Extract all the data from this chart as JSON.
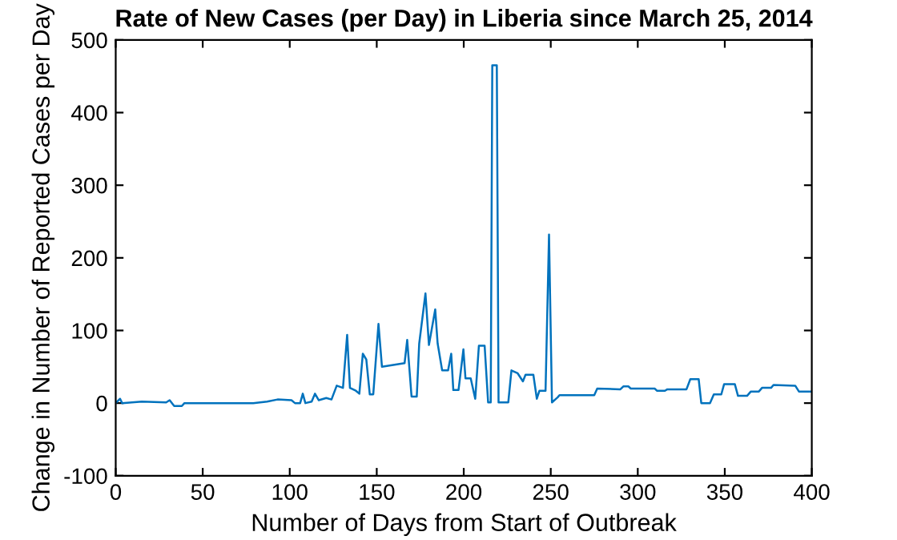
{
  "chart_data": {
    "type": "line",
    "title": "Rate of New Cases (per Day) in Liberia since March 25, 2014",
    "xlabel": "Number of Days from Start of Outbreak",
    "ylabel": "Change in Number of Reported Cases per Day",
    "xlim": [
      0,
      400
    ],
    "ylim": [
      -100,
      500
    ],
    "xticks": [
      0,
      50,
      100,
      150,
      200,
      250,
      300,
      350,
      400
    ],
    "yticks": [
      -100,
      0,
      100,
      200,
      300,
      400,
      500
    ],
    "grid": false,
    "legend": false,
    "marker": "none",
    "line_style": "solid",
    "series": [
      {
        "color": "#0072bd",
        "x": [
          0,
          2.5,
          3.7,
          15,
          29,
          31,
          33.6,
          38,
          39.5,
          79,
          87,
          93,
          101,
          103,
          106,
          107.5,
          109,
          112.6,
          114.5,
          116.7,
          121,
          124,
          127,
          130.6,
          133,
          134.6,
          138,
          140,
          142,
          144,
          146,
          148,
          151,
          153,
          166,
          167.5,
          170,
          173,
          174.4,
          178,
          180,
          183.6,
          185,
          187.6,
          191,
          192.8,
          194,
          197,
          199.8,
          201,
          204,
          206.6,
          208.7,
          212,
          214,
          215.5,
          216.4,
          219,
          220,
          225.6,
          227.4,
          231,
          234,
          235.5,
          240,
          242,
          243.5,
          247,
          249,
          250.7,
          254,
          255,
          275,
          276.7,
          290,
          291.7,
          294.6,
          296,
          309.8,
          311,
          315.6,
          317,
          328,
          330.2,
          335,
          336.5,
          341.5,
          343.7,
          348,
          349.6,
          355.8,
          357.6,
          362.8,
          365,
          369.6,
          371.4,
          376.6,
          378,
          390.5,
          392.6,
          400
        ],
        "values": [
          0,
          6,
          0,
          2,
          1,
          4,
          -4,
          -4,
          0,
          0,
          2,
          5,
          4,
          0,
          0,
          13,
          0,
          2,
          13,
          4,
          7,
          5,
          24,
          21,
          94,
          21,
          17,
          13,
          68,
          60,
          12,
          12,
          109,
          50,
          55,
          87,
          9,
          9,
          82,
          151,
          80,
          129,
          82,
          45,
          45,
          68,
          18,
          18,
          74,
          34,
          34,
          6,
          79,
          79,
          1,
          1,
          465,
          465,
          1,
          1,
          45,
          41,
          30,
          39,
          39,
          6,
          17,
          17,
          232,
          1,
          8,
          11,
          11,
          20,
          19,
          23,
          23,
          20,
          20,
          17,
          17,
          19,
          19,
          33,
          33,
          0,
          0,
          12,
          12,
          26,
          26,
          10,
          10,
          16,
          16,
          21,
          21,
          25,
          24,
          16,
          16
        ]
      }
    ]
  }
}
